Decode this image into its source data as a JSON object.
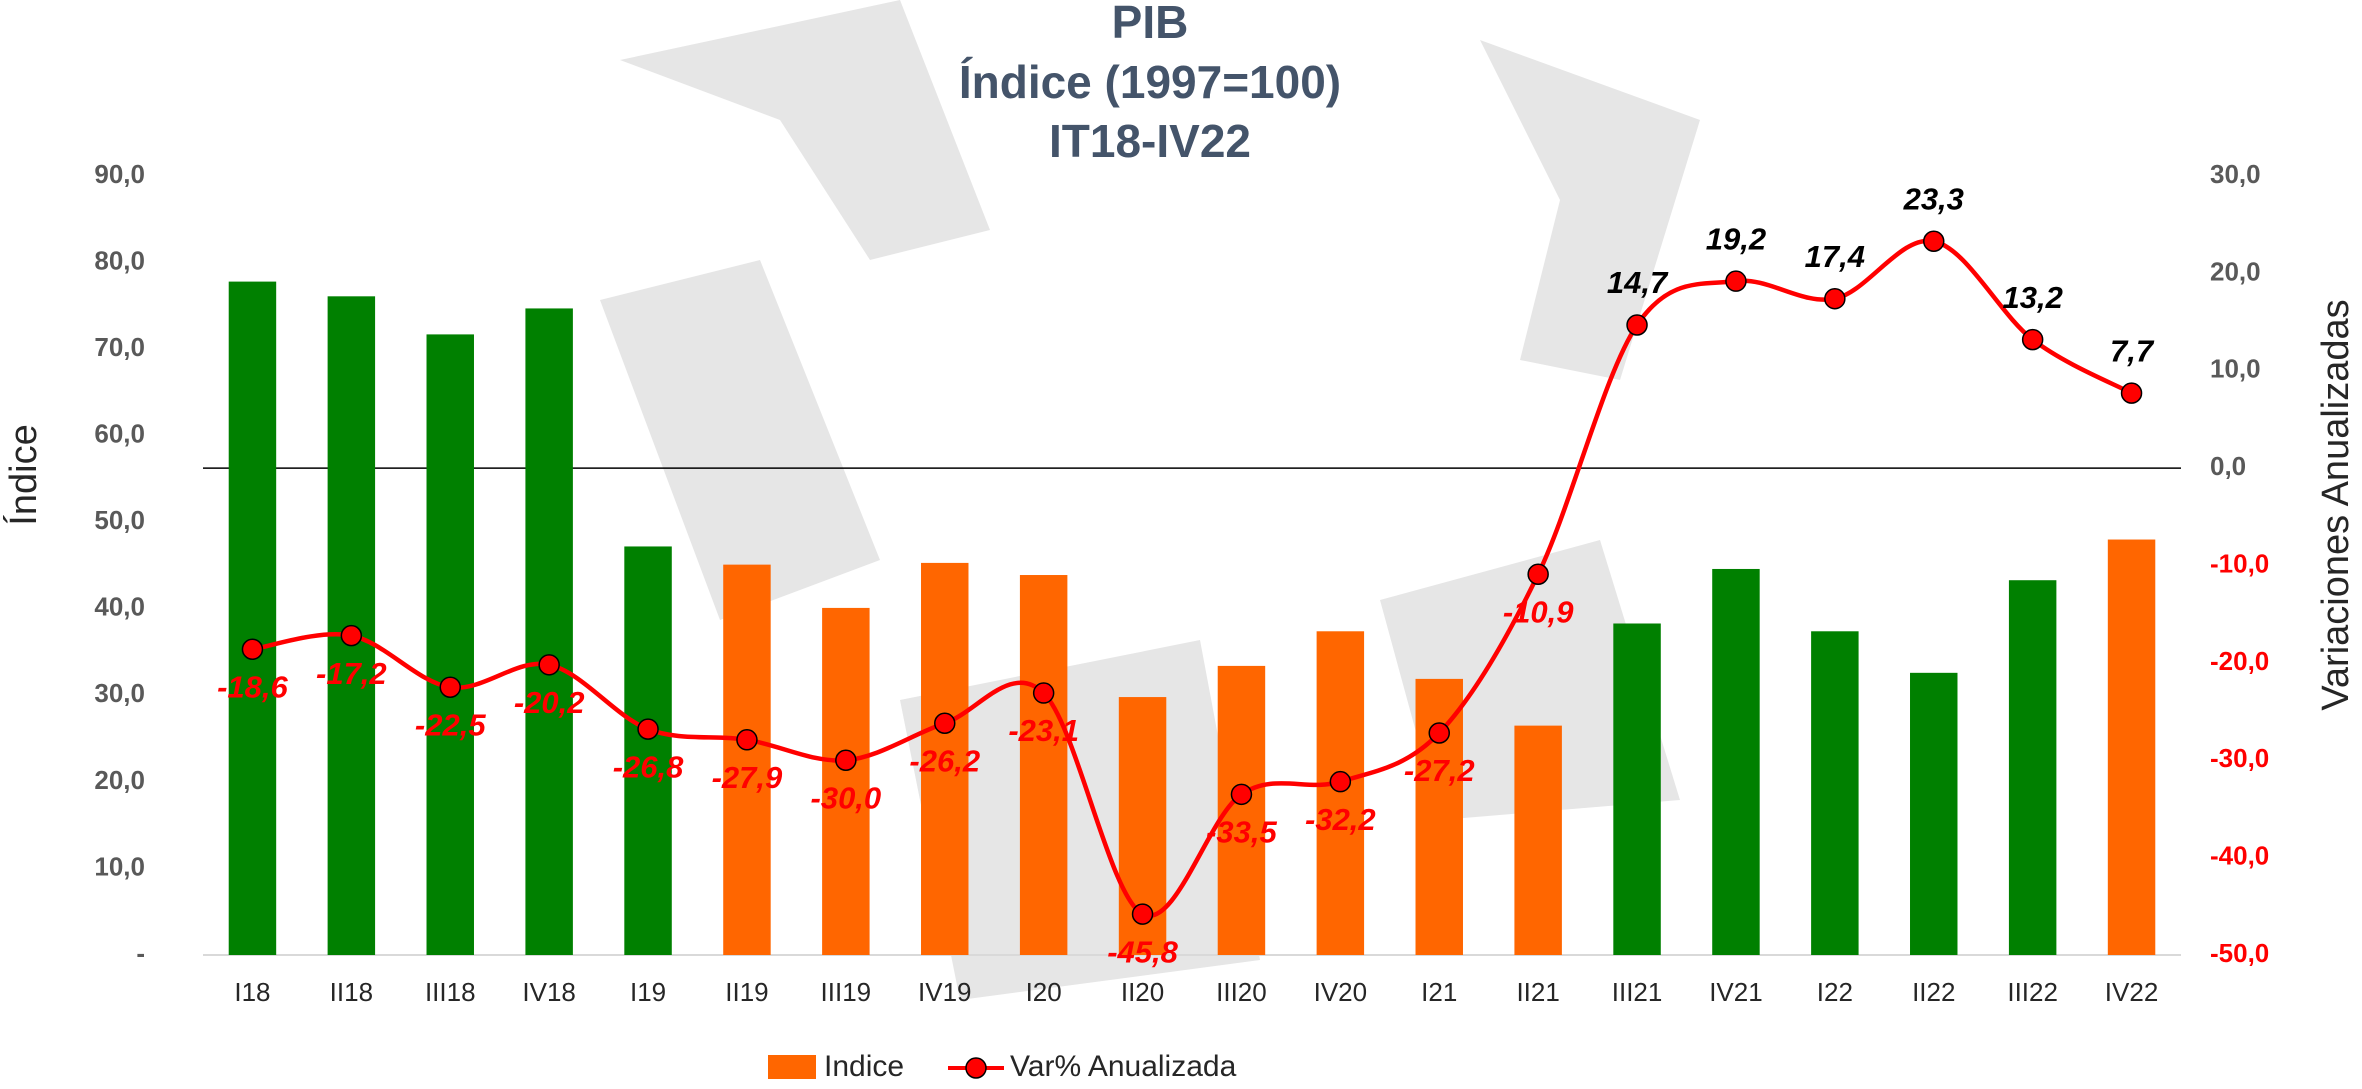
{
  "chart_data": {
    "type": "bar-line",
    "title": [
      "PIB",
      "Índice (1997=100)",
      "IT18-IV22"
    ],
    "y_label": "Índice",
    "y2_label": "Variaciones Anualizadas",
    "categories": [
      "I18",
      "II18",
      "III18",
      "IV18",
      "I19",
      "II19",
      "III19",
      "IV19",
      "I20",
      "II20",
      "III20",
      "IV20",
      "I21",
      "II21",
      "III21",
      "IV21",
      "I22",
      "II22",
      "III22",
      "IV22"
    ],
    "series": [
      {
        "name": "Indice",
        "type": "bar",
        "color": "#ff6600",
        "colors": [
          "#008000",
          "#008000",
          "#008000",
          "#008000",
          "#008000",
          "#ff6600",
          "#ff6600",
          "#ff6600",
          "#ff6600",
          "#ff6600",
          "#ff6600",
          "#ff6600",
          "#ff6600",
          "#ff6600",
          "#008000",
          "#008000",
          "#008000",
          "#008000",
          "#008000",
          "#ff6600"
        ],
        "values": [
          77.8,
          76.1,
          71.7,
          74.7,
          47.2,
          45.1,
          40.1,
          45.3,
          43.9,
          29.8,
          33.4,
          37.4,
          31.9,
          26.5,
          38.3,
          44.6,
          37.4,
          32.6,
          43.3,
          48.0
        ]
      },
      {
        "name": "Var% Anualizada",
        "type": "line",
        "axis": "y2",
        "color": "#ff0000",
        "values": [
          -18.6,
          -17.2,
          -22.5,
          -20.2,
          -26.8,
          -27.9,
          -30.0,
          -26.2,
          -23.1,
          -45.8,
          -33.5,
          -32.2,
          -27.2,
          -10.9,
          14.7,
          19.2,
          17.4,
          23.3,
          13.2,
          7.7
        ],
        "value_labels": [
          "-18,6",
          "-17,2",
          "-22,5",
          "-20,2",
          "-26,8",
          "-27,9",
          "-30,0",
          "-26,2",
          "-23,1",
          "-45,8",
          "-33,5",
          "-32,2",
          "-27,2",
          "-10,9",
          "14,7",
          "19,2",
          "17,4",
          "23,3",
          "13,2",
          "7,7"
        ]
      }
    ],
    "ylim": [
      0,
      90
    ],
    "yticks": [
      {
        "value": 0,
        "label": "-"
      },
      {
        "value": 10,
        "label": "10,0"
      },
      {
        "value": 20,
        "label": "20,0"
      },
      {
        "value": 30,
        "label": "30,0"
      },
      {
        "value": 40,
        "label": "40,0"
      },
      {
        "value": 50,
        "label": "50,0"
      },
      {
        "value": 60,
        "label": "60,0"
      },
      {
        "value": 70,
        "label": "70,0"
      },
      {
        "value": 80,
        "label": "80,0"
      },
      {
        "value": 90,
        "label": "90,0"
      }
    ],
    "y2lim": [
      -50,
      30
    ],
    "y2ticks": [
      {
        "value": -50,
        "label": "-50,0"
      },
      {
        "value": -40,
        "label": "-40,0"
      },
      {
        "value": -30,
        "label": "-30,0"
      },
      {
        "value": -20,
        "label": "-20,0"
      },
      {
        "value": -10,
        "label": "-10,0"
      },
      {
        "value": 0,
        "label": "0,0"
      },
      {
        "value": 10,
        "label": "10,0"
      },
      {
        "value": 20,
        "label": "20,0"
      },
      {
        "value": 30,
        "label": "30,0"
      }
    ],
    "negative_color": "#ff0000"
  }
}
